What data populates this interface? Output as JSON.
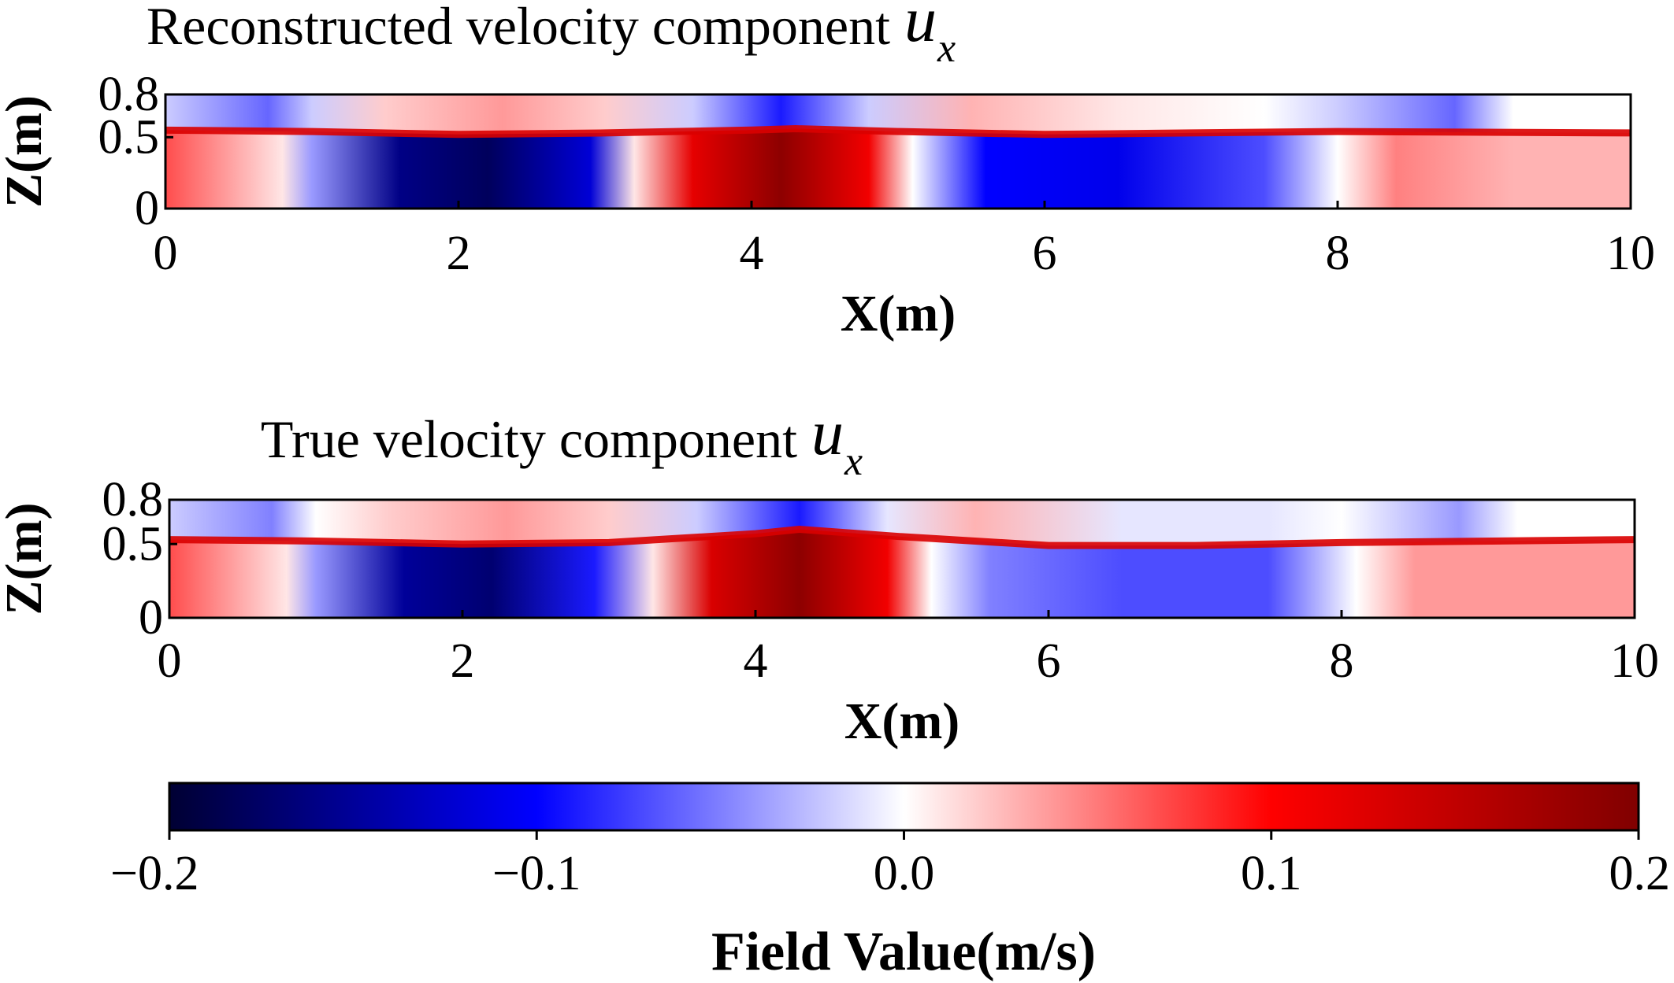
{
  "chart_data": [
    {
      "type": "heatmap",
      "title": "Reconstructed velocity component",
      "title_symbol": "u",
      "title_subscript": "x",
      "xlabel": "X(m)",
      "ylabel": "Z(m)",
      "xlim": [
        0,
        10
      ],
      "ylim": [
        0,
        0.8
      ],
      "xticks": [
        0,
        2,
        4,
        6,
        8,
        10
      ],
      "yticks": [
        0,
        0.5,
        0.8
      ],
      "xtick_labels": [
        "0",
        "2",
        "4",
        "6",
        "8",
        "10"
      ],
      "ytick_labels": [
        "0",
        "0.5",
        "0.8"
      ],
      "interface_z": [
        0.55,
        0.54,
        0.52,
        0.53,
        0.55,
        0.56,
        0.54,
        0.52,
        0.53,
        0.54,
        0.53
      ],
      "interface_x": [
        0,
        1,
        2,
        3,
        4,
        4.3,
        5,
        6,
        7,
        8,
        10
      ],
      "lower_layer_ux": {
        "x": [
          0,
          0.8,
          1.0,
          1.6,
          2.2,
          2.9,
          3.2,
          3.6,
          4.2,
          4.8,
          5.1,
          5.6,
          6.5,
          7.5,
          8.0,
          8.4,
          9.2,
          10
        ],
        "ux": [
          0.07,
          0.01,
          -0.04,
          -0.16,
          -0.18,
          -0.12,
          0.01,
          0.12,
          0.19,
          0.11,
          0.0,
          -0.1,
          -0.11,
          -0.07,
          0.0,
          0.05,
          0.03,
          0.03
        ]
      },
      "upper_layer_ux": {
        "x": [
          0,
          0.7,
          1.0,
          1.5,
          2.3,
          3.0,
          3.6,
          4.2,
          4.8,
          5.5,
          6.5,
          7.5,
          8.0,
          8.8,
          9.2,
          10
        ],
        "ux": [
          -0.02,
          -0.06,
          -0.02,
          0.02,
          0.04,
          0.02,
          -0.02,
          -0.09,
          -0.02,
          0.03,
          0.01,
          0.0,
          -0.02,
          -0.06,
          0.0,
          0.0
        ]
      }
    },
    {
      "type": "heatmap",
      "title": "True velocity component",
      "title_symbol": "u",
      "title_subscript": "x",
      "xlabel": "X(m)",
      "ylabel": "Z(m)",
      "xlim": [
        0,
        10
      ],
      "ylim": [
        0,
        0.8
      ],
      "xticks": [
        0,
        2,
        4,
        6,
        8,
        10
      ],
      "yticks": [
        0,
        0.5,
        0.8
      ],
      "xtick_labels": [
        "0",
        "2",
        "4",
        "6",
        "8",
        "10"
      ],
      "ytick_labels": [
        "0",
        "0.5",
        "0.8"
      ],
      "interface_z": [
        0.53,
        0.52,
        0.5,
        0.51,
        0.57,
        0.6,
        0.55,
        0.49,
        0.49,
        0.51,
        0.53
      ],
      "interface_x": [
        0,
        1,
        2,
        3,
        4,
        4.3,
        5,
        6,
        7,
        8,
        10
      ],
      "lower_layer_ux": {
        "x": [
          0,
          0.8,
          1.0,
          1.6,
          2.2,
          2.9,
          3.3,
          3.7,
          4.3,
          4.9,
          5.2,
          5.6,
          6.5,
          7.5,
          8.1,
          8.5,
          9.2,
          10
        ],
        "ux": [
          0.07,
          0.01,
          -0.04,
          -0.15,
          -0.17,
          -0.09,
          0.01,
          0.13,
          0.19,
          0.11,
          0.0,
          -0.05,
          -0.07,
          -0.07,
          0.0,
          0.04,
          0.04,
          0.04
        ]
      },
      "upper_layer_ux": {
        "x": [
          0,
          0.7,
          1.0,
          1.5,
          2.3,
          3.0,
          3.6,
          4.3,
          4.9,
          5.5,
          6.5,
          7.5,
          8.0,
          8.8,
          9.2,
          10
        ],
        "ux": [
          -0.02,
          -0.05,
          0.0,
          0.02,
          0.04,
          0.02,
          -0.02,
          -0.09,
          -0.01,
          0.03,
          -0.01,
          -0.01,
          0.0,
          -0.04,
          0.0,
          0.0
        ]
      }
    }
  ],
  "colorbar": {
    "label": "Field Value(m/s)",
    "vmin": -0.2,
    "vmax": 0.2,
    "ticks": [
      -0.2,
      -0.1,
      0.0,
      0.1,
      0.2
    ],
    "tick_labels": [
      "−0.2",
      "−0.1",
      "0.0",
      "0.1",
      "0.2"
    ],
    "colormap_stops": [
      {
        "value": -0.2,
        "color": "#000033"
      },
      {
        "value": -0.1,
        "color": "#0000ff"
      },
      {
        "value": 0.0,
        "color": "#ffffff"
      },
      {
        "value": 0.1,
        "color": "#ff0000"
      },
      {
        "value": 0.2,
        "color": "#800000"
      }
    ]
  }
}
